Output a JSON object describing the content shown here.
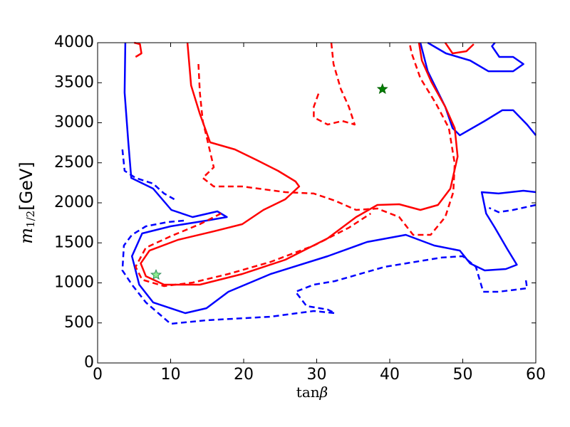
{
  "chart_data": {
    "type": "line",
    "xlabel": {
      "base": "tan",
      "symbol": "β"
    },
    "ylabel": {
      "symbol": "m",
      "subscript": "1/2",
      "unit": "[GeV]"
    },
    "xlim": [
      0,
      60
    ],
    "ylim": [
      0,
      4000
    ],
    "xticks": [
      0,
      10,
      20,
      30,
      40,
      50,
      60
    ],
    "yticks": [
      0,
      500,
      1000,
      1500,
      2000,
      2500,
      3000,
      3500,
      4000
    ],
    "series": [
      {
        "color": "#0000ff",
        "linestyle": "solid",
        "x": [
          3.8,
          3.7,
          4.2,
          4.6,
          7.6,
          10.1,
          13.0,
          16.4,
          17.7,
          14.9,
          10.0,
          6.1,
          4.7,
          5.7,
          7.6,
          12.0,
          14.9,
          17.9,
          23.7,
          31.5,
          36.9,
          42.2,
          46.1,
          49.6,
          51.0,
          53.0,
          55.9,
          57.4,
          56.1,
          54.4,
          53.2,
          52.6,
          54.9,
          58.3,
          60
        ],
        "values": [
          4000,
          3378,
          2756,
          2311,
          2178,
          1911,
          1822,
          1893,
          1822,
          1778,
          1707,
          1618,
          1333,
          978,
          756,
          622,
          684,
          889,
          1111,
          1333,
          1511,
          1600,
          1467,
          1404,
          1244,
          1156,
          1173,
          1227,
          1422,
          1689,
          1867,
          2133,
          2116,
          2151,
          2133
        ]
      },
      {
        "color": "#0000ff",
        "linestyle": "solid",
        "x": [
          44.2,
          45.2,
          47.6,
          48.6,
          49.6,
          53.0,
          55.4,
          56.9,
          58.8,
          60
        ],
        "values": [
          4000,
          3644,
          3200,
          2933,
          2844,
          3022,
          3156,
          3156,
          2978,
          2844
        ]
      },
      {
        "color": "#0000ff",
        "linestyle": "solid",
        "x": [
          45.2,
          47.7,
          51.0,
          53.5,
          56.9,
          58.3,
          56.9,
          55.0,
          54.0,
          54.4
        ],
        "values": [
          4000,
          3867,
          3778,
          3644,
          3644,
          3733,
          3822,
          3822,
          3956,
          4000
        ]
      },
      {
        "color": "#0000ff",
        "linestyle": "dashed",
        "x": [
          3.4,
          3.7,
          5.2,
          7.6,
          9.1,
          10.5
        ],
        "values": [
          2667,
          2400,
          2311,
          2240,
          2116,
          2044
        ]
      },
      {
        "color": "#0000ff",
        "linestyle": "dashed",
        "x": [
          11.8,
          9.6,
          6.6,
          4.7,
          3.6,
          3.4,
          4.7,
          6.6,
          10.0,
          14.9,
          23.7,
          29.6,
          32.5,
          31.5,
          28.6,
          27.1,
          29.6,
          32.5,
          39.3,
          47.1,
          50.0,
          51.8,
          52.8,
          54.9,
          58.8,
          58.6
        ],
        "values": [
          1778,
          1760,
          1707,
          1600,
          1467,
          1156,
          978,
          756,
          489,
          533,
          578,
          649,
          622,
          667,
          711,
          889,
          978,
          1022,
          1200,
          1316,
          1333,
          1200,
          889,
          889,
          933,
          1067
        ]
      },
      {
        "color": "#0000ff",
        "linestyle": "dashed",
        "x": [
          60,
          56.9,
          54.9,
          53.6
        ],
        "values": [
          1973,
          1911,
          1884,
          1938
        ]
      },
      {
        "color": "#ff0000",
        "linestyle": "solid",
        "x": [
          12.3,
          12.8,
          14.0,
          15.4,
          18.8,
          21.8,
          24.7,
          27.1,
          27.6,
          25.7,
          22.7,
          19.8,
          15.9,
          11.0,
          7.1,
          5.9,
          6.6,
          9.1,
          14.0,
          19.8,
          25.7,
          31.5,
          35.4,
          38.3,
          41.3,
          44.2,
          46.6,
          48.3,
          49.3,
          48.9,
          47.6,
          45.7,
          44.4,
          44.0
        ],
        "values": [
          4000,
          3467,
          3111,
          2756,
          2667,
          2533,
          2400,
          2267,
          2204,
          2044,
          1911,
          1733,
          1644,
          1538,
          1404,
          1244,
          1084,
          978,
          978,
          1111,
          1289,
          1556,
          1822,
          1973,
          1982,
          1911,
          1973,
          2178,
          2578,
          2933,
          3200,
          3511,
          3778,
          4000
        ]
      },
      {
        "color": "#ff0000",
        "linestyle": "solid",
        "x": [
          5.0,
          5.8,
          6.0,
          5.2
        ],
        "values": [
          4000,
          3982,
          3867,
          3822
        ]
      },
      {
        "color": "#ff0000",
        "linestyle": "solid",
        "x": [
          47.6,
          48.6,
          50.5,
          51.5
        ],
        "values": [
          4000,
          3867,
          3893,
          3982
        ]
      },
      {
        "color": "#ff0000",
        "linestyle": "dashed",
        "x": [
          13.8,
          14.0,
          14.4,
          15.1,
          15.9,
          14.4,
          15.9,
          19.8,
          25.7,
          29.6,
          32.5,
          35.4,
          38.3,
          41.3,
          43.2,
          45.6,
          47.6,
          48.7,
          48.9,
          48.1,
          46.3,
          44.2,
          43.0,
          42.7
        ],
        "values": [
          3733,
          3378,
          3022,
          2756,
          2444,
          2311,
          2204,
          2204,
          2133,
          2116,
          2027,
          1911,
          1929,
          1822,
          1600,
          1600,
          1822,
          2133,
          2489,
          2933,
          3244,
          3556,
          3867,
          4000
        ]
      },
      {
        "color": "#ff0000",
        "linestyle": "dashed",
        "x": [
          16.9,
          14.0,
          10.0,
          6.6,
          5.2,
          6.1,
          9.1,
          13.0,
          17.9,
          23.7,
          29.6,
          34.4,
          37.4
        ],
        "values": [
          1867,
          1733,
          1582,
          1440,
          1200,
          1040,
          960,
          1004,
          1111,
          1262,
          1467,
          1689,
          1867
        ]
      },
      {
        "color": "#ff0000",
        "linestyle": "dashed",
        "x": [
          32.0,
          32.3,
          33.3,
          34.4,
          35.2,
          33.5,
          31.5,
          29.6,
          29.6,
          30.3
        ],
        "values": [
          4000,
          3733,
          3422,
          3200,
          2978,
          3022,
          2978,
          3067,
          3200,
          3378
        ]
      }
    ],
    "points": [
      {
        "x": 8,
        "y": 1100,
        "color": "#90ee90",
        "edgecolor": "#2e8b57"
      },
      {
        "x": 39,
        "y": 3420,
        "color": "#008000",
        "edgecolor": "#006400"
      }
    ]
  }
}
